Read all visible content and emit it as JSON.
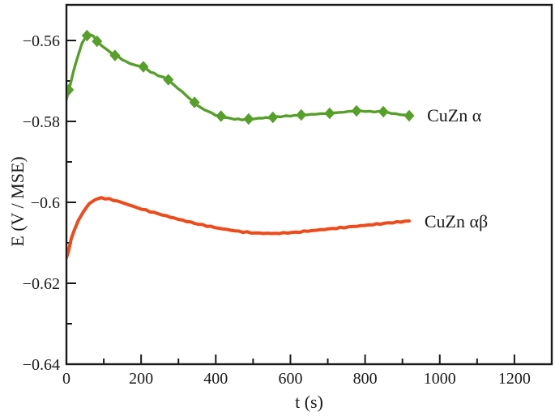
{
  "chart_data": {
    "type": "line",
    "title": "",
    "xlabel": "t (s)",
    "ylabel": "E (V / MSE)",
    "xlim": [
      0,
      1300
    ],
    "ylim": [
      -0.64,
      -0.5512
    ],
    "grid": false,
    "legend_position": "inline-right-of-line-ends",
    "frame_color": "#1a1a1a",
    "x_major_ticks": [
      0,
      200,
      400,
      600,
      800,
      1000,
      1200
    ],
    "x_major_tick_labels": [
      "0",
      "200",
      "400",
      "600",
      "800",
      "1000",
      "1200"
    ],
    "x_minor_ticks": [
      100,
      300,
      500,
      700,
      900,
      1100
    ],
    "y_major_ticks": [
      -0.56,
      -0.58,
      -0.6,
      -0.62,
      -0.64
    ],
    "y_major_tick_labels": [
      "−0.56",
      "−0.58",
      "−0.6",
      "−0.62",
      "−0.64"
    ],
    "y_minor_ticks": [
      -0.57,
      -0.59,
      -0.61,
      -0.63
    ],
    "series": [
      {
        "name": "CuZn α",
        "color": "#56a02a",
        "line_width": 3.4,
        "marker": "diamond",
        "marker_size": 13,
        "label_pos": {
          "t": 966,
          "E": -0.5786
        },
        "points": [
          [
            0,
            -0.5745
          ],
          [
            4,
            -0.573
          ],
          [
            8,
            -0.5716
          ],
          [
            13,
            -0.57
          ],
          [
            18,
            -0.568
          ],
          [
            25,
            -0.5655
          ],
          [
            33,
            -0.5632
          ],
          [
            42,
            -0.5607
          ],
          [
            52,
            -0.5591
          ],
          [
            62,
            -0.5586
          ],
          [
            72,
            -0.5588
          ],
          [
            82,
            -0.5602
          ],
          [
            95,
            -0.5613
          ],
          [
            110,
            -0.5624
          ],
          [
            130,
            -0.5637
          ],
          [
            150,
            -0.5647
          ],
          [
            170,
            -0.5657
          ],
          [
            190,
            -0.5663
          ],
          [
            206,
            -0.5665
          ],
          [
            225,
            -0.5677
          ],
          [
            245,
            -0.5687
          ],
          [
            260,
            -0.5692
          ],
          [
            273,
            -0.5697
          ],
          [
            290,
            -0.5712
          ],
          [
            310,
            -0.5727
          ],
          [
            328,
            -0.5741
          ],
          [
            343,
            -0.5753
          ],
          [
            360,
            -0.5766
          ],
          [
            380,
            -0.5776
          ],
          [
            400,
            -0.5784
          ],
          [
            414,
            -0.5787
          ],
          [
            432,
            -0.5791
          ],
          [
            450,
            -0.5794
          ],
          [
            470,
            -0.5796
          ],
          [
            488,
            -0.5794
          ],
          [
            505,
            -0.5793
          ],
          [
            525,
            -0.5792
          ],
          [
            553,
            -0.579
          ],
          [
            575,
            -0.5788
          ],
          [
            600,
            -0.5786
          ],
          [
            629,
            -0.5784
          ],
          [
            655,
            -0.5783
          ],
          [
            680,
            -0.5781
          ],
          [
            705,
            -0.578
          ],
          [
            730,
            -0.5778
          ],
          [
            755,
            -0.5776
          ],
          [
            777,
            -0.5774
          ],
          [
            800,
            -0.5775
          ],
          [
            825,
            -0.5776
          ],
          [
            849,
            -0.5776
          ],
          [
            870,
            -0.578
          ],
          [
            895,
            -0.5783
          ],
          [
            918,
            -0.5786
          ]
        ],
        "marker_points": [
          [
            6,
            -0.5722
          ],
          [
            55,
            -0.5588
          ],
          [
            82,
            -0.5602
          ],
          [
            130,
            -0.5637
          ],
          [
            206,
            -0.5665
          ],
          [
            273,
            -0.5697
          ],
          [
            343,
            -0.5753
          ],
          [
            414,
            -0.5787
          ],
          [
            488,
            -0.5794
          ],
          [
            553,
            -0.579
          ],
          [
            629,
            -0.5784
          ],
          [
            705,
            -0.578
          ],
          [
            777,
            -0.5774
          ],
          [
            849,
            -0.5776
          ],
          [
            918,
            -0.5786
          ]
        ]
      },
      {
        "name": "CuZn αβ",
        "color": "#f04a1a",
        "line_width": 4,
        "marker": "none",
        "marker_size": 0,
        "label_pos": {
          "t": 959,
          "E": -0.6048
        },
        "points": [
          [
            0,
            -0.6136
          ],
          [
            6,
            -0.6118
          ],
          [
            13,
            -0.609
          ],
          [
            22,
            -0.6066
          ],
          [
            32,
            -0.6044
          ],
          [
            46,
            -0.6022
          ],
          [
            61,
            -0.6004
          ],
          [
            78,
            -0.5992
          ],
          [
            93,
            -0.5989
          ],
          [
            115,
            -0.5992
          ],
          [
            148,
            -0.6
          ],
          [
            191,
            -0.6014
          ],
          [
            245,
            -0.6028
          ],
          [
            300,
            -0.6042
          ],
          [
            354,
            -0.6054
          ],
          [
            408,
            -0.6064
          ],
          [
            462,
            -0.6072
          ],
          [
            506,
            -0.6076
          ],
          [
            560,
            -0.6077
          ],
          [
            614,
            -0.6074
          ],
          [
            679,
            -0.6068
          ],
          [
            744,
            -0.6062
          ],
          [
            809,
            -0.6056
          ],
          [
            863,
            -0.6051
          ],
          [
            918,
            -0.6046
          ]
        ],
        "marker_points": []
      }
    ]
  }
}
